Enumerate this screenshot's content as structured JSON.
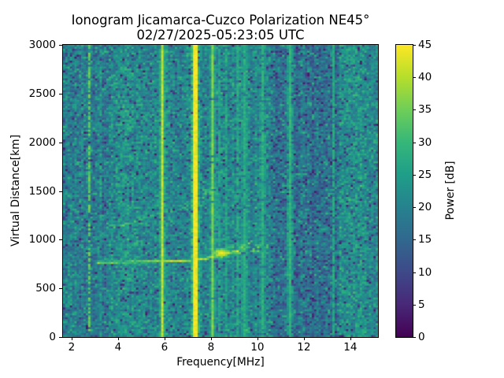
{
  "title": {
    "line1": "Ionogram Jicamarca-Cuzco Polarization NE45°",
    "line2": "02/27/2025-05:23:05 UTC"
  },
  "chart_data": {
    "type": "heatmap",
    "xlabel": "Frequency[MHz]",
    "ylabel": "Virtual Distance[km]",
    "colorbar_label": "Power [dB]",
    "x_range": [
      1.63,
      15.19
    ],
    "y_range": [
      0,
      3000
    ],
    "c_range": [
      0,
      45
    ],
    "x_ticks": [
      2,
      4,
      6,
      8,
      10,
      12,
      14
    ],
    "y_ticks": [
      0,
      500,
      1000,
      1500,
      2000,
      2500,
      3000
    ],
    "colorbar_ticks": [
      0,
      5,
      10,
      15,
      20,
      25,
      30,
      35,
      40,
      45
    ],
    "colormap": "viridis",
    "viridis_stops": [
      "#440154",
      "#482878",
      "#3e4989",
      "#31688e",
      "#26828e",
      "#1f9e89",
      "#35b779",
      "#6ece58",
      "#b5de2b",
      "#fde725"
    ],
    "figure_bg": "#ffffff",
    "text_color": "#000000",
    "grid": {
      "nx": 138,
      "ny": 148
    },
    "seed": 1337,
    "background": {
      "base_db": 20.4,
      "noise_sigma": 3.6,
      "dark_speck_prob": 0.06,
      "dark_speck_range": [
        3,
        13
      ],
      "bright_speck_prob": 0.05,
      "bands": [
        {
          "f": [
            1.63,
            3.35
          ],
          "delta": -0.8
        },
        {
          "f": [
            3.7,
            5.0
          ],
          "delta": 1.3,
          "bright_speck_prob": 0.11
        },
        {
          "f": [
            5.0,
            6.5
          ],
          "delta": 0.5
        },
        {
          "f": [
            10.6,
            13.45
          ],
          "delta": -3.2,
          "dark_speck_prob": 0.13
        },
        {
          "f": [
            13.5,
            14.65
          ],
          "delta": 1.6,
          "bright_speck_prob": 0.1
        }
      ]
    },
    "interference_lines": [
      {
        "f": 2.72,
        "power": 34,
        "halo": 0,
        "gap": 0.3
      },
      {
        "f": 5.95,
        "power": 41,
        "halo": 27,
        "gap": 0
      },
      {
        "f": 7.25,
        "power": 45,
        "halo": 30,
        "gap": 0
      },
      {
        "f": 7.4,
        "power": 44,
        "halo": 28,
        "gap": 0
      },
      {
        "f": 8.05,
        "power": 36,
        "halo": 25,
        "gap": 0.05
      },
      {
        "f": 8.35,
        "power": 26,
        "halo": 0,
        "gap": 0.2
      },
      {
        "f": 8.62,
        "power": 26,
        "halo": 0,
        "gap": 0.25
      },
      {
        "f": 9.1,
        "power": 27,
        "halo": 0,
        "gap": 0.2
      },
      {
        "f": 9.4,
        "power": 28,
        "halo": 24,
        "gap": 0.1
      },
      {
        "f": 10.25,
        "power": 28,
        "halo": 24,
        "gap": 0.1
      },
      {
        "f": 11.42,
        "power": 29,
        "halo": 24,
        "gap": 0
      },
      {
        "f": 13.3,
        "power": 27,
        "halo": 0,
        "gap": 0.15
      }
    ],
    "echo_trace": {
      "points": [
        [
          3.0,
          766
        ],
        [
          3.3,
          767
        ],
        [
          4.0,
          769
        ],
        [
          5.0,
          772
        ],
        [
          6.0,
          776
        ],
        [
          6.7,
          782
        ],
        [
          7.2,
          790
        ],
        [
          7.7,
          803
        ],
        [
          8.0,
          817
        ],
        [
          8.3,
          840
        ],
        [
          8.6,
          860
        ],
        [
          8.9,
          872
        ],
        [
          9.2,
          880
        ]
      ],
      "sigma_km": 13,
      "power": 41
    },
    "echo_trace_core": {
      "points": [
        [
          3.3,
          767
        ],
        [
          4.7,
          771
        ]
      ],
      "sigma_km": 9,
      "power": 44
    },
    "focus_blob": {
      "center": [
        8.45,
        862
      ],
      "sigma_f": 0.38,
      "sigma_km": 52,
      "power": 45
    },
    "spread_clouds": [
      {
        "center": [
          9.35,
          925
        ],
        "sigma_f": 0.32,
        "sigma_km": 46,
        "power": 33,
        "density": 0.7
      },
      {
        "center": [
          10.05,
          945
        ],
        "sigma_f": 0.28,
        "sigma_km": 40,
        "power": 31,
        "density": 0.6
      }
    ],
    "scatter_band": {
      "f": [
        8.7,
        10.55
      ],
      "h": [
        860,
        1000
      ],
      "density": 0.16,
      "power": [
        28,
        36
      ]
    },
    "plume": {
      "f_center": 8.22,
      "sigma_f": 0.1,
      "h": [
        950,
        1700
      ],
      "power_bottom": 30,
      "power_top": 22,
      "density": 0.55
    },
    "second_hop": {
      "points": [
        [
          3.8,
          1120
        ],
        [
          4.3,
          1160
        ],
        [
          4.9,
          1210
        ],
        [
          5.5,
          1250
        ],
        [
          6.0,
          1280
        ],
        [
          6.5,
          1320
        ],
        [
          7.0,
          1360
        ],
        [
          7.5,
          1420
        ],
        [
          8.0,
          1490
        ],
        [
          8.25,
          1530
        ]
      ],
      "sigma_km": 38,
      "power": 30,
      "density": 0.5
    },
    "second_hop_cloud": {
      "center": [
        7.9,
        1480
      ],
      "sigma_f": 0.45,
      "sigma_km": 70,
      "power": 32,
      "density": 0.5
    }
  }
}
